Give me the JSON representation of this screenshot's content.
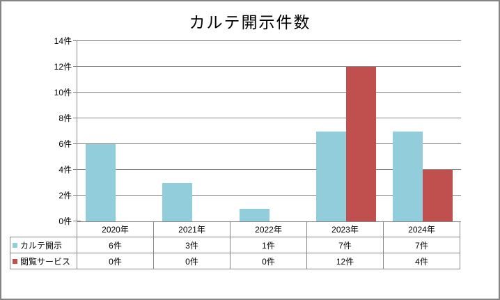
{
  "title": "カルテ開示件数",
  "colors": {
    "series1": "#92CDDC",
    "series2": "#C0504D",
    "grid": "#878787",
    "frame": "#848484",
    "text": "#000000"
  },
  "chart_data": {
    "type": "bar",
    "title": "カルテ開示件数",
    "categories": [
      "2020年",
      "2021年",
      "2022年",
      "2023年",
      "2024年"
    ],
    "series": [
      {
        "name": "カルテ開示",
        "color": "#92CDDC",
        "values": [
          6,
          3,
          1,
          7,
          7
        ],
        "labels": [
          "6件",
          "3件",
          "1件",
          "7件",
          "7件"
        ]
      },
      {
        "name": "閲覧サービス",
        "color": "#C0504D",
        "values": [
          0,
          0,
          0,
          12,
          4
        ],
        "labels": [
          "0件",
          "0件",
          "0件",
          "12件",
          "4件"
        ]
      }
    ],
    "xlabel": "",
    "ylabel": "",
    "ylim": [
      0,
      14
    ],
    "ytick_step": 2,
    "ytick_labels": [
      "0件",
      "2件",
      "4件",
      "6件",
      "8件",
      "10件",
      "12件",
      "14件"
    ],
    "unit_suffix": "件",
    "grid": true,
    "legend_position": "data-table-below-plot"
  }
}
